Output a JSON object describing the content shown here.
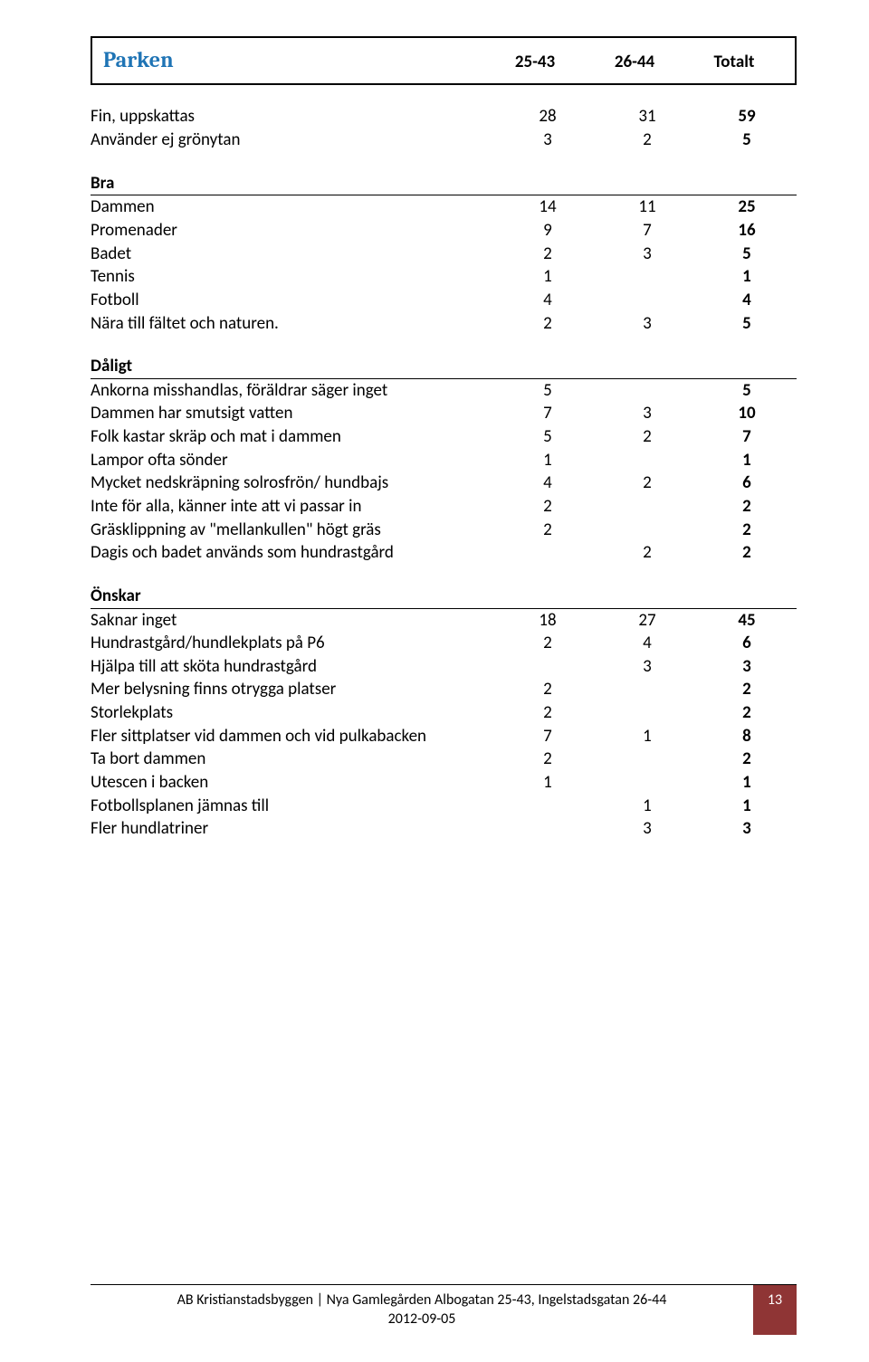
{
  "header": {
    "title": "Parken",
    "col1": "25-43",
    "col2": "26-44",
    "col3": "Totalt"
  },
  "sections": [
    {
      "heading": null,
      "rows": [
        {
          "label": "Fin, uppskattas",
          "c1": "28",
          "c2": "31",
          "c3": "59"
        },
        {
          "label": "Använder ej grönytan",
          "c1": "3",
          "c2": "2",
          "c3": "5"
        }
      ]
    },
    {
      "heading": "Bra",
      "rows": [
        {
          "label": "Dammen",
          "c1": "14",
          "c2": "11",
          "c3": "25"
        },
        {
          "label": "Promenader",
          "c1": "9",
          "c2": "7",
          "c3": "16"
        },
        {
          "label": "Badet",
          "c1": "2",
          "c2": "3",
          "c3": "5"
        },
        {
          "label": "Tennis",
          "c1": "1",
          "c2": "",
          "c3": "1"
        },
        {
          "label": "Fotboll",
          "c1": "4",
          "c2": "",
          "c3": "4"
        },
        {
          "label": "Nära till fältet och naturen.",
          "c1": "2",
          "c2": "3",
          "c3": "5"
        }
      ]
    },
    {
      "heading": "Dåligt",
      "rows": [
        {
          "label": "Ankorna misshandlas, föräldrar säger inget",
          "c1": "5",
          "c2": "",
          "c3": "5"
        },
        {
          "label": "Dammen har smutsigt vatten",
          "c1": "7",
          "c2": "3",
          "c3": "10"
        },
        {
          "label": "Folk kastar skräp och mat i dammen",
          "c1": "5",
          "c2": "2",
          "c3": "7"
        },
        {
          "label": "Lampor ofta sönder",
          "c1": "1",
          "c2": "",
          "c3": "1"
        },
        {
          "label": "Mycket nedskräpning solrosfrön/ hundbajs",
          "c1": "4",
          "c2": "2",
          "c3": "6"
        },
        {
          "label": "Inte för alla, känner inte att vi passar in",
          "c1": "2",
          "c2": "",
          "c3": "2"
        },
        {
          "label": "Gräsklippning av \"mellankullen\" högt gräs",
          "c1": "2",
          "c2": "",
          "c3": "2"
        },
        {
          "label": "Dagis och badet används som hundrastgård",
          "c1": "",
          "c2": "2",
          "c3": "2"
        }
      ]
    },
    {
      "heading": "Önskar",
      "rows": [
        {
          "label": "Saknar inget",
          "c1": "18",
          "c2": "27",
          "c3": "45"
        },
        {
          "label": "Hundrastgård/hundlekplats på P6",
          "c1": "2",
          "c2": "4",
          "c3": "6"
        },
        {
          "label": "Hjälpa till att sköta hundrastgård",
          "c1": "",
          "c2": "3",
          "c3": "3"
        },
        {
          "label": "Mer belysning finns otrygga platser",
          "c1": "2",
          "c2": "",
          "c3": "2"
        },
        {
          "label": "Storlekplats",
          "c1": "2",
          "c2": "",
          "c3": "2"
        },
        {
          "label": "Fler sittplatser vid dammen och vid pulkabacken",
          "c1": "7",
          "c2": "1",
          "c3": "8"
        },
        {
          "label": "Ta bort dammen",
          "c1": "2",
          "c2": "",
          "c3": "2"
        },
        {
          "label": "Utescen i backen",
          "c1": "1",
          "c2": "",
          "c3": "1"
        },
        {
          "label": "Fotbollsplanen jämnas till",
          "c1": "",
          "c2": "1",
          "c3": "1"
        },
        {
          "label": "Fler hundlatriner",
          "c1": "",
          "c2": "3",
          "c3": "3"
        }
      ]
    }
  ],
  "footer": {
    "line1": "AB Kristianstadsbyggen | Nya Gamlegården Albogatan 25-43, Ingelstadsgatan 26-44",
    "line2": "2012-09-05",
    "page": "13"
  },
  "colors": {
    "title": "#1f74b5",
    "footer_bg": "#8f3535",
    "footer_fg": "#ffffff",
    "text": "#000000",
    "rule": "#000000"
  }
}
